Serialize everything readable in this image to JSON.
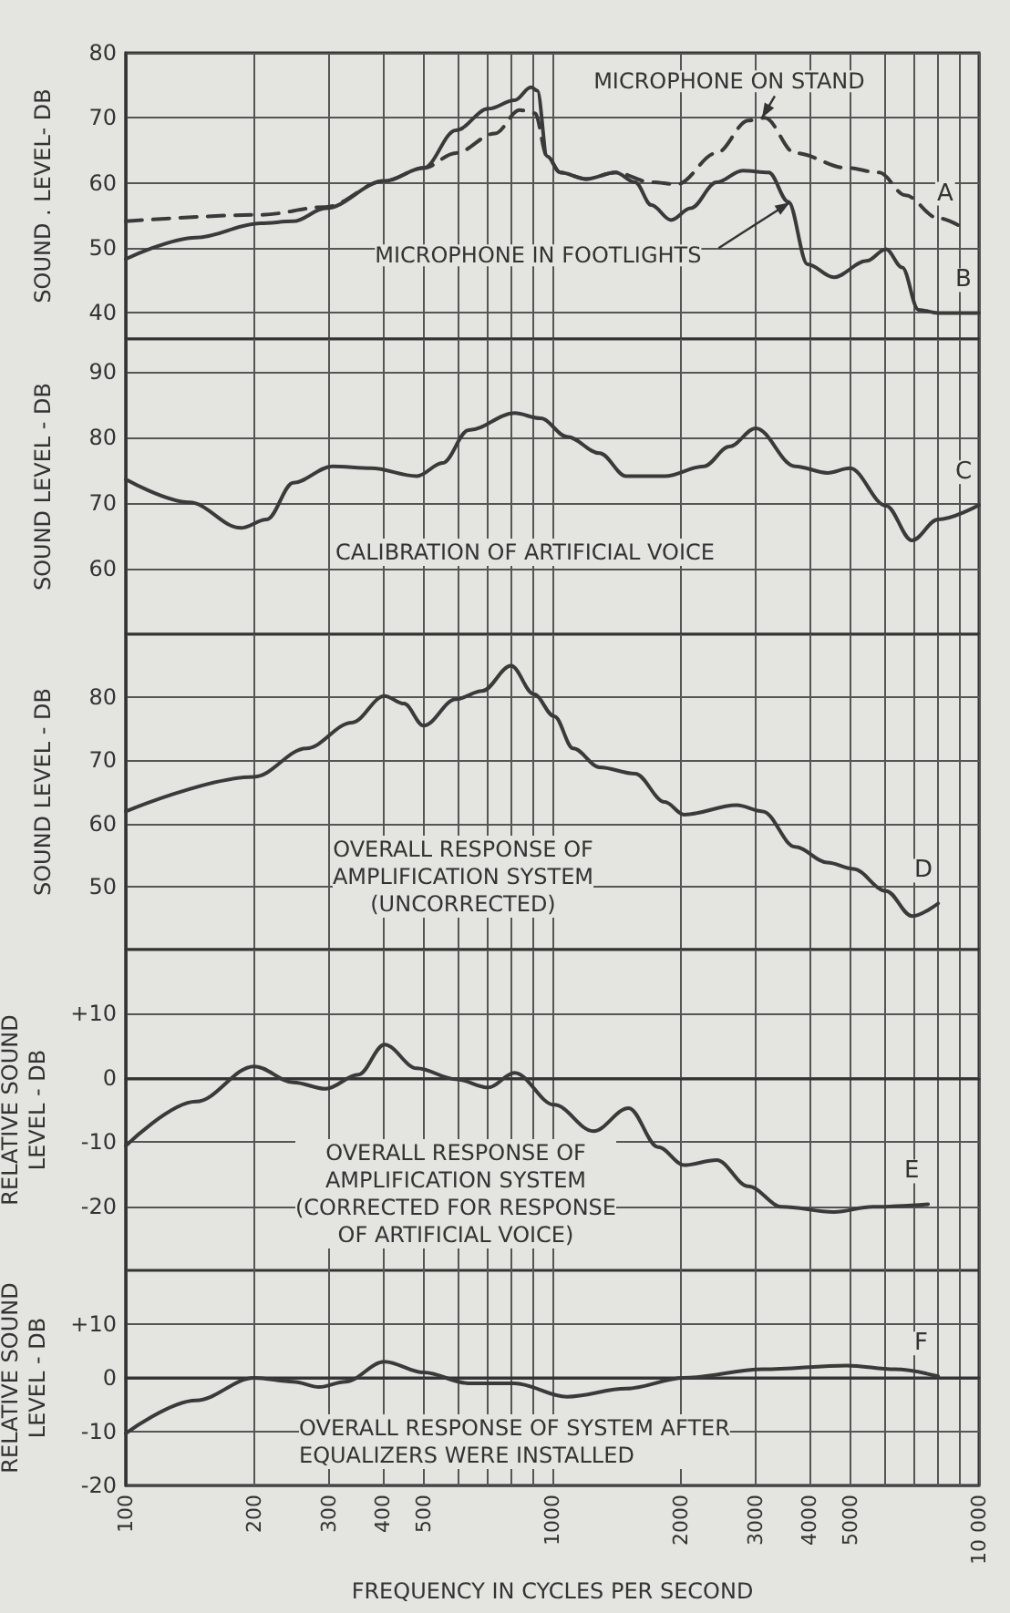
{
  "chart_data": [
    {
      "type": "line",
      "ylabel": "SOUND . LEVEL- DB",
      "xlim": [
        100,
        10000
      ],
      "log": "x",
      "grid": true,
      "marker": "none",
      "tick_labels": "y",
      "xticks": [
        100,
        200,
        300,
        400,
        500,
        {
          "value": 600,
          "label": null
        },
        {
          "value": 700,
          "label": null
        },
        {
          "value": 800,
          "label": null
        },
        {
          "value": 900,
          "label": null
        },
        1000,
        2000,
        3000,
        4000,
        5000,
        {
          "value": 6000,
          "label": null
        },
        {
          "value": 7000,
          "label": null
        },
        {
          "value": 8000,
          "label": null
        },
        {
          "value": 9000,
          "label": null
        },
        10000
      ],
      "ylim": [
        36,
        80
      ],
      "yticks": [
        40,
        50,
        60,
        70,
        80
      ],
      "annotations": [
        {
          "text": "MICROPHONE ON STAND",
          "x": 3100,
          "y": 70
        },
        {
          "text": "MICROPHONE IN FOOTLIGHTS",
          "x": 3600,
          "y": 57
        }
      ],
      "series": [
        {
          "name": "A",
          "color": "#3a3a3a",
          "line_style": "dashed",
          "x": [
            100,
            207,
            294,
            404,
            499,
            594,
            733,
            838,
            910,
            972,
            1043,
            1200,
            1406,
            1706,
            1960,
            2426,
            2879,
            3148,
            3705,
            4898,
            5836,
            6719,
            8017,
            9058
          ],
          "values": [
            54.1,
            55.1,
            56.3,
            60.3,
            62.3,
            64.6,
            67.6,
            71.2,
            70.7,
            64.1,
            61.6,
            60.6,
            61.6,
            60.1,
            59.8,
            64.6,
            69.6,
            70.0,
            64.6,
            62.3,
            61.6,
            58.1,
            54.6,
            53.3
          ]
        },
        {
          "name": "B",
          "color": "#3a3a3a",
          "line_style": "solid",
          "x": [
            100,
            146,
            207,
            247,
            294,
            404,
            499,
            594,
            708,
            815,
            891,
            922,
            972,
            1043,
            1200,
            1406,
            1563,
            1706,
            1897,
            2108,
            2426,
            2792,
            3214,
            3573,
            3963,
            4567,
            5445,
            6053,
            6607,
            7212,
            8017,
            10000
          ],
          "values": [
            48.3,
            51.6,
            53.8,
            54.1,
            56.1,
            60.3,
            62.3,
            68.1,
            71.4,
            72.7,
            74.7,
            74.2,
            64.1,
            61.6,
            60.6,
            61.6,
            60.1,
            56.6,
            54.3,
            56.1,
            60.1,
            61.9,
            61.6,
            57.1,
            47.5,
            45.5,
            48.0,
            49.8,
            47.0,
            40.5,
            40.0,
            40.0
          ]
        }
      ]
    },
    {
      "type": "line",
      "ylabel": "SOUND LEVEL - DB",
      "xlim": [
        100,
        10000
      ],
      "log": "x",
      "grid": true,
      "marker": "none",
      "tick_labels": "y",
      "xticks": [
        100,
        200,
        300,
        400,
        500,
        {
          "value": 600,
          "label": null
        },
        {
          "value": 700,
          "label": null
        },
        {
          "value": 800,
          "label": null
        },
        {
          "value": 900,
          "label": null
        },
        1000,
        2000,
        3000,
        4000,
        5000,
        {
          "value": 6000,
          "label": null
        },
        {
          "value": 7000,
          "label": null
        },
        {
          "value": 8000,
          "label": null
        },
        {
          "value": 9000,
          "label": null
        },
        10000
      ],
      "ylim": [
        50,
        95
      ],
      "yticks": [
        60,
        70,
        80,
        90
      ],
      "annotations": [
        "CALIBRATION OF ARTIFICIAL VOICE"
      ],
      "series": [
        {
          "name": "C",
          "color": "#3a3a3a",
          "x": [
            100,
            141,
            186,
            214,
            247,
            305,
            376,
            481,
            553,
            636,
            815,
            939,
            1082,
            1290,
            1489,
            1834,
            2265,
            2598,
            2997,
            3705,
            4413,
            4984,
            6053,
            6965,
            8017,
            10000
          ],
          "values": [
            73.6,
            70.1,
            66.2,
            67.5,
            73.1,
            75.6,
            75.3,
            74.1,
            76.1,
            81.1,
            83.7,
            82.9,
            80.1,
            77.6,
            74.1,
            74.1,
            75.6,
            78.6,
            81.4,
            75.6,
            74.6,
            75.3,
            69.6,
            64.3,
            67.5,
            69.7
          ]
        }
      ]
    },
    {
      "type": "line",
      "ylabel": "SOUND LEVEL - DB",
      "xlim": [
        100,
        10000
      ],
      "log": "x",
      "grid": true,
      "marker": "none",
      "tick_labels": "y",
      "xticks": [
        100,
        200,
        300,
        400,
        500,
        {
          "value": 600,
          "label": null
        },
        {
          "value": 700,
          "label": null
        },
        {
          "value": 800,
          "label": null
        },
        {
          "value": 900,
          "label": null
        },
        1000,
        2000,
        3000,
        4000,
        5000,
        {
          "value": 6000,
          "label": null
        },
        {
          "value": 7000,
          "label": null
        },
        {
          "value": 8000,
          "label": null
        },
        {
          "value": 9000,
          "label": null
        },
        10000
      ],
      "ylim": [
        40,
        90
      ],
      "yticks": [
        50,
        60,
        70,
        80
      ],
      "annotations": [
        "OVERALL RESPONSE OF\nAMPLIFICATION SYSTEM\n(UNCORRECTED)"
      ],
      "series": [
        {
          "name": "D",
          "color": "#3a3a3a",
          "x": [
            100,
            200,
            265,
            339,
            404,
            449,
            499,
            594,
            684,
            800,
            905,
            1010,
            1119,
            1290,
            1563,
            1834,
            2036,
            2704,
            3111,
            3705,
            4413,
            5067,
            6053,
            6965,
            8017
          ],
          "values": [
            61.9,
            67.4,
            71.9,
            76.0,
            80.2,
            79.0,
            75.5,
            79.7,
            81.0,
            85.0,
            80.5,
            77.0,
            71.9,
            68.9,
            67.9,
            63.4,
            61.4,
            62.9,
            61.9,
            56.3,
            53.8,
            52.8,
            49.3,
            45.3,
            47.3
          ]
        }
      ]
    },
    {
      "type": "line",
      "ylabel": "RELATIVE SOUND\nLEVEL - DB",
      "xlim": [
        100,
        10000
      ],
      "log": "x",
      "grid": true,
      "marker": "none",
      "tick_labels": "y",
      "xticks": [
        100,
        200,
        300,
        400,
        500,
        {
          "value": 600,
          "label": null
        },
        {
          "value": 700,
          "label": null
        },
        {
          "value": 800,
          "label": null
        },
        {
          "value": 900,
          "label": null
        },
        1000,
        2000,
        3000,
        4000,
        5000,
        {
          "value": 6000,
          "label": null
        },
        {
          "value": 7000,
          "label": null
        },
        {
          "value": 8000,
          "label": null
        },
        {
          "value": 9000,
          "label": null
        },
        10000
      ],
      "ylim": [
        -30,
        20
      ],
      "yticks": [
        -20,
        -10,
        0,
        {
          "value": 10,
          "label": "+10"
        }
      ],
      "annotations": [
        "OVERALL RESPONSE OF\nAMPLIFICATION SYSTEM\n(CORRECTED FOR RESPONSE\nOF ARTIFICIAL VOICE)"
      ],
      "series": [
        {
          "name": "E",
          "color": "#3a3a3a",
          "x": [
            100,
            146,
            200,
            247,
            294,
            351,
            404,
            481,
            594,
            708,
            815,
            1010,
            1247,
            1509,
            1771,
            2036,
            2426,
            2879,
            3454,
            4567,
            5636,
            7596
          ],
          "values": [
            -10.6,
            -3.7,
            1.8,
            -0.7,
            -1.7,
            0.5,
            5.2,
            1.5,
            -0.2,
            -1.5,
            0.8,
            -4.2,
            -8.3,
            -4.7,
            -10.8,
            -13.6,
            -12.8,
            -16.9,
            -20.1,
            -20.9,
            -20.1,
            -19.7
          ]
        }
      ]
    },
    {
      "type": "line",
      "ylabel": "RELATIVE SOUND\nLEVEL - DB",
      "xlabel": "FREQUENCY IN CYCLES PER SECOND",
      "xlim": [
        100,
        10000
      ],
      "log": "x",
      "grid": true,
      "marker": "none",
      "xticks": [
        100,
        200,
        300,
        400,
        500,
        {
          "value": 600,
          "label": null
        },
        {
          "value": 700,
          "label": null
        },
        {
          "value": 800,
          "label": null
        },
        {
          "value": 900,
          "label": null
        },
        1000,
        2000,
        3000,
        4000,
        5000,
        {
          "value": 6000,
          "label": null
        },
        {
          "value": 7000,
          "label": null
        },
        {
          "value": 8000,
          "label": null
        },
        {
          "value": 9000,
          "label": null
        },
        {
          "value": 10000,
          "label": "10 000"
        }
      ],
      "ylim": [
        -20,
        20
      ],
      "yticks": [
        -20,
        -10,
        0,
        {
          "value": 10,
          "label": "+10"
        }
      ],
      "annotations": [
        "OVERALL RESPONSE OF SYSTEM AFTER\nEQUALIZERS WERE INSTALLED"
      ],
      "series": [
        {
          "name": "F",
          "color": "#3a3a3a",
          "x": [
            100,
            146,
            200,
            247,
            284,
            327,
            404,
            499,
            636,
            815,
            1082,
            1489,
            2036,
            3111,
            4898,
            6354,
            8017
          ],
          "values": [
            -10.3,
            -4.2,
            0,
            -0.7,
            -1.7,
            -0.7,
            3.0,
            1.0,
            -1.0,
            -1.0,
            -3.5,
            -2.0,
            0,
            1.6,
            2.3,
            1.6,
            0.3
          ]
        }
      ]
    }
  ]
}
